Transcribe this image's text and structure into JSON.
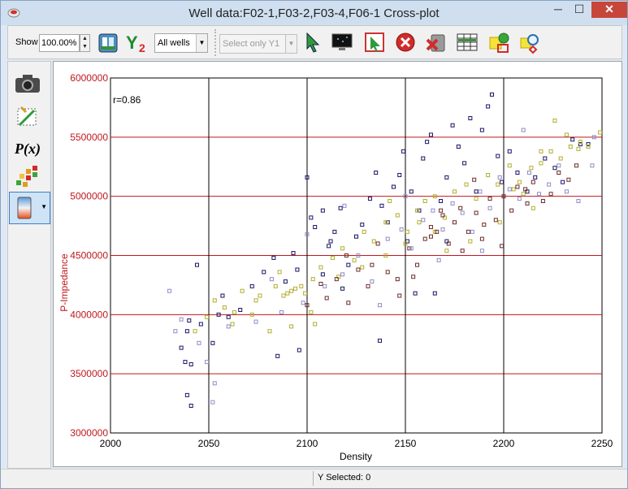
{
  "window": {
    "title": "Well data:F02-1,F03-2,F03-4,F06-1 Cross-plot",
    "minimize": "─",
    "maximize": "☐",
    "close": "✕"
  },
  "toolbar": {
    "show_label": "Show",
    "zoom_value": "100.00%",
    "well_filter": "All wells",
    "y1_select": "Select only Y1",
    "icons": [
      "dock-icon",
      "y2-axis-icon",
      "select-cursor-icon",
      "monitor-icon",
      "rect-select-icon",
      "remove-selection-icon",
      "delete-icon",
      "table-icon",
      "settings-icon",
      "find-icon"
    ]
  },
  "sidebar": {
    "icons": [
      "camera-icon",
      "swap-axes-icon",
      "px-icon",
      "color-grid-icon",
      "color-bar-icon"
    ]
  },
  "status": {
    "text": "Y Selected: 0"
  },
  "colors": {
    "axis_red": "#c0181c",
    "series_navy": "#1a1466",
    "series_olive": "#b2ae2c",
    "series_maroon": "#6e2a2a",
    "series_lavender": "#8e8cc8"
  },
  "chart_data": {
    "type": "scatter",
    "xlabel": "Density",
    "ylabel": "P-Impedance",
    "annotation": "r=0.86",
    "xlim": [
      2000,
      2250
    ],
    "ylim": [
      3000000,
      6000000
    ],
    "xticks": [
      "2000",
      "2050",
      "2100",
      "2150",
      "2200",
      "2250"
    ],
    "yticks": [
      "3000000",
      "3500000",
      "4000000",
      "4500000",
      "5000000",
      "5500000",
      "6000000"
    ],
    "grid": true,
    "series": [
      {
        "color": "#1a1466",
        "points": [
          [
            2036,
            3720000
          ],
          [
            2038,
            3600000
          ],
          [
            2039,
            3860000
          ],
          [
            2040,
            3950000
          ],
          [
            2041,
            3580000
          ],
          [
            2039,
            3320000
          ],
          [
            2041,
            3230000
          ],
          [
            2044,
            4420000
          ],
          [
            2046,
            3920000
          ],
          [
            2052,
            3760000
          ],
          [
            2055,
            4000000
          ],
          [
            2057,
            4160000
          ],
          [
            2060,
            3980000
          ],
          [
            2066,
            4040000
          ],
          [
            2072,
            4240000
          ],
          [
            2078,
            4360000
          ],
          [
            2083,
            4480000
          ],
          [
            2085,
            3650000
          ],
          [
            2089,
            4280000
          ],
          [
            2093,
            4520000
          ],
          [
            2096,
            3700000
          ],
          [
            2100,
            5160000
          ],
          [
            2102,
            4820000
          ],
          [
            2104,
            4740000
          ],
          [
            2108,
            4880000
          ],
          [
            2111,
            4580000
          ],
          [
            2114,
            4700000
          ],
          [
            2117,
            4900000
          ],
          [
            2121,
            4420000
          ],
          [
            2125,
            4660000
          ],
          [
            2128,
            4760000
          ],
          [
            2132,
            4980000
          ],
          [
            2135,
            5200000
          ],
          [
            2138,
            4920000
          ],
          [
            2141,
            4780000
          ],
          [
            2144,
            5080000
          ],
          [
            2147,
            5180000
          ],
          [
            2149,
            5380000
          ],
          [
            2151,
            4620000
          ],
          [
            2153,
            5040000
          ],
          [
            2155,
            4180000
          ],
          [
            2157,
            4880000
          ],
          [
            2159,
            5320000
          ],
          [
            2161,
            5460000
          ],
          [
            2163,
            5520000
          ],
          [
            2165,
            4180000
          ],
          [
            2168,
            4960000
          ],
          [
            2171,
            5160000
          ],
          [
            2174,
            5600000
          ],
          [
            2177,
            5420000
          ],
          [
            2180,
            5280000
          ],
          [
            2183,
            5660000
          ],
          [
            2186,
            5040000
          ],
          [
            2189,
            5560000
          ],
          [
            2192,
            5760000
          ],
          [
            2194,
            5860000
          ],
          [
            2197,
            5340000
          ],
          [
            2199,
            5120000
          ],
          [
            2203,
            5380000
          ],
          [
            2207,
            5200000
          ],
          [
            2212,
            5040000
          ],
          [
            2216,
            5160000
          ],
          [
            2221,
            5320000
          ],
          [
            2226,
            5240000
          ],
          [
            2230,
            5120000
          ],
          [
            2235,
            5480000
          ],
          [
            2239,
            5440000
          ],
          [
            2243,
            5440000
          ],
          [
            2137,
            3780000
          ],
          [
            2171,
            4620000
          ],
          [
            2118,
            4220000
          ],
          [
            2112,
            4620000
          ],
          [
            2108,
            4340000
          ],
          [
            2095,
            4380000
          ]
        ]
      },
      {
        "color": "#b2ae2c",
        "points": [
          [
            2043,
            3860000
          ],
          [
            2049,
            3980000
          ],
          [
            2053,
            4120000
          ],
          [
            2058,
            4060000
          ],
          [
            2062,
            3920000
          ],
          [
            2067,
            4200000
          ],
          [
            2072,
            4000000
          ],
          [
            2076,
            4160000
          ],
          [
            2081,
            3860000
          ],
          [
            2084,
            4240000
          ],
          [
            2088,
            4160000
          ],
          [
            2090,
            4180000
          ],
          [
            2092,
            4200000
          ],
          [
            2094,
            4220000
          ],
          [
            2097,
            4240000
          ],
          [
            2099,
            4180000
          ],
          [
            2103,
            4300000
          ],
          [
            2107,
            4400000
          ],
          [
            2113,
            4480000
          ],
          [
            2118,
            4560000
          ],
          [
            2124,
            4460000
          ],
          [
            2129,
            4700000
          ],
          [
            2134,
            4620000
          ],
          [
            2140,
            4780000
          ],
          [
            2146,
            4840000
          ],
          [
            2151,
            4700000
          ],
          [
            2156,
            4880000
          ],
          [
            2160,
            4960000
          ],
          [
            2165,
            5000000
          ],
          [
            2170,
            4820000
          ],
          [
            2175,
            5040000
          ],
          [
            2181,
            5100000
          ],
          [
            2186,
            4980000
          ],
          [
            2192,
            5180000
          ],
          [
            2197,
            5100000
          ],
          [
            2203,
            5260000
          ],
          [
            2208,
            5120000
          ],
          [
            2214,
            5240000
          ],
          [
            2219,
            5280000
          ],
          [
            2224,
            5380000
          ],
          [
            2229,
            5320000
          ],
          [
            2234,
            5420000
          ],
          [
            2238,
            5400000
          ],
          [
            2243,
            5420000
          ],
          [
            2249,
            5540000
          ],
          [
            2239,
            5460000
          ],
          [
            2232,
            5520000
          ],
          [
            2219,
            5380000
          ],
          [
            2210,
            5020000
          ],
          [
            2205,
            5060000
          ],
          [
            2215,
            4900000
          ],
          [
            2198,
            4780000
          ],
          [
            2183,
            4620000
          ],
          [
            2165,
            4700000
          ],
          [
            2150,
            4600000
          ],
          [
            2140,
            4500000
          ],
          [
            2128,
            4400000
          ],
          [
            2116,
            4320000
          ],
          [
            2102,
            4020000
          ],
          [
            2086,
            4360000
          ],
          [
            2074,
            4120000
          ],
          [
            2063,
            4020000
          ],
          [
            2092,
            3900000
          ],
          [
            2104,
            3920000
          ],
          [
            2226,
            5640000
          ],
          [
            2142,
            4960000
          ],
          [
            2157,
            4780000
          ],
          [
            2171,
            4540000
          ]
        ]
      },
      {
        "color": "#6e2a2a",
        "points": [
          [
            2110,
            4140000
          ],
          [
            2115,
            4300000
          ],
          [
            2120,
            4500000
          ],
          [
            2126,
            4380000
          ],
          [
            2131,
            4240000
          ],
          [
            2136,
            4600000
          ],
          [
            2141,
            4360000
          ],
          [
            2146,
            4300000
          ],
          [
            2152,
            4560000
          ],
          [
            2156,
            4420000
          ],
          [
            2160,
            4640000
          ],
          [
            2163,
            4740000
          ],
          [
            2166,
            4700000
          ],
          [
            2169,
            4840000
          ],
          [
            2172,
            4600000
          ],
          [
            2175,
            4780000
          ],
          [
            2178,
            4900000
          ],
          [
            2182,
            4700000
          ],
          [
            2186,
            4860000
          ],
          [
            2189,
            4640000
          ],
          [
            2193,
            4980000
          ],
          [
            2196,
            4800000
          ],
          [
            2200,
            5000000
          ],
          [
            2204,
            4880000
          ],
          [
            2207,
            5080000
          ],
          [
            2211,
            5060000
          ],
          [
            2215,
            5120000
          ],
          [
            2220,
            4960000
          ],
          [
            2224,
            5020000
          ],
          [
            2228,
            5200000
          ],
          [
            2233,
            5140000
          ],
          [
            2237,
            5260000
          ],
          [
            2212,
            4940000
          ],
          [
            2199,
            4580000
          ],
          [
            2179,
            4540000
          ],
          [
            2163,
            4660000
          ],
          [
            2147,
            4160000
          ],
          [
            2133,
            4420000
          ],
          [
            2121,
            4100000
          ],
          [
            2107,
            4260000
          ],
          [
            2100,
            4080000
          ],
          [
            2154,
            4320000
          ],
          [
            2168,
            4880000
          ],
          [
            2185,
            5140000
          ],
          [
            2190,
            4760000
          ]
        ]
      },
      {
        "color": "#8e8cc8",
        "points": [
          [
            2030,
            4200000
          ],
          [
            2033,
            3860000
          ],
          [
            2036,
            3960000
          ],
          [
            2045,
            3760000
          ],
          [
            2049,
            3600000
          ],
          [
            2053,
            3420000
          ],
          [
            2052,
            3260000
          ],
          [
            2060,
            3900000
          ],
          [
            2074,
            3940000
          ],
          [
            2087,
            4020000
          ],
          [
            2098,
            4100000
          ],
          [
            2109,
            4240000
          ],
          [
            2118,
            4340000
          ],
          [
            2126,
            4500000
          ],
          [
            2133,
            4280000
          ],
          [
            2141,
            4640000
          ],
          [
            2148,
            4720000
          ],
          [
            2153,
            4560000
          ],
          [
            2159,
            4800000
          ],
          [
            2164,
            4880000
          ],
          [
            2169,
            4720000
          ],
          [
            2174,
            4940000
          ],
          [
            2179,
            4860000
          ],
          [
            2184,
            4700000
          ],
          [
            2188,
            5040000
          ],
          [
            2193,
            4900000
          ],
          [
            2198,
            5160000
          ],
          [
            2203,
            5060000
          ],
          [
            2208,
            4980000
          ],
          [
            2213,
            5200000
          ],
          [
            2218,
            5020000
          ],
          [
            2223,
            5100000
          ],
          [
            2228,
            5260000
          ],
          [
            2232,
            5040000
          ],
          [
            2238,
            4960000
          ],
          [
            2245,
            5260000
          ],
          [
            2246,
            5500000
          ],
          [
            2210,
            5560000
          ],
          [
            2189,
            4540000
          ],
          [
            2167,
            4460000
          ],
          [
            2150,
            5000000
          ],
          [
            2137,
            4080000
          ],
          [
            2119,
            4920000
          ],
          [
            2100,
            4680000
          ],
          [
            2082,
            4300000
          ]
        ]
      }
    ]
  }
}
